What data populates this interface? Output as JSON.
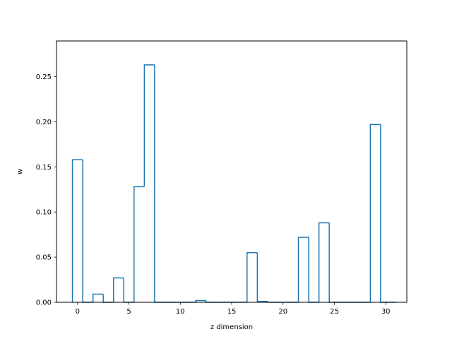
{
  "chart_data": {
    "type": "bar",
    "style": "step-histogram",
    "title": "",
    "xlabel": "z dimension",
    "ylabel": "w",
    "xlim": [
      -2.05,
      32.05
    ],
    "ylim": [
      0,
      0.2895
    ],
    "xticks": [
      0,
      5,
      10,
      15,
      20,
      25,
      30
    ],
    "xtick_labels": [
      "0",
      "5",
      "10",
      "15",
      "20",
      "25",
      "30"
    ],
    "yticks": [
      0.0,
      0.05,
      0.1,
      0.15,
      0.2,
      0.25
    ],
    "ytick_labels": [
      "0.00",
      "0.05",
      "0.10",
      "0.15",
      "0.20",
      "0.25"
    ],
    "grid": false,
    "legend": "none",
    "color": "#1f77b4",
    "x": [
      0,
      1,
      2,
      3,
      4,
      5,
      6,
      7,
      8,
      9,
      10,
      11,
      12,
      13,
      14,
      15,
      16,
      17,
      18,
      19,
      20,
      21,
      22,
      23,
      24,
      25,
      26,
      27,
      28,
      29,
      30
    ],
    "values": [
      0.158,
      0.0,
      0.009,
      0.0,
      0.027,
      0.0,
      0.128,
      0.263,
      0.0,
      0.0,
      0.0,
      0.0,
      0.002,
      0.0,
      0.0,
      0.0,
      0.0,
      0.055,
      0.001,
      0.0,
      0.0,
      0.0,
      0.072,
      0.0,
      0.088,
      0.0,
      0.0,
      0.0,
      0.0,
      0.197,
      0.0
    ]
  }
}
